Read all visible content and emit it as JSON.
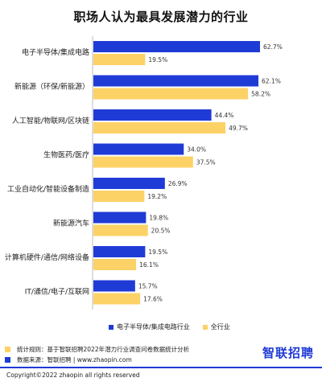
{
  "chart_data": {
    "type": "bar",
    "orientation": "horizontal",
    "title": "职场人认为最具发展潜力的行业",
    "categories": [
      "电子半导体/集成电路",
      "新能源（环保/新能源）",
      "人工智能/物联网/区块链",
      "生物医药/医疗",
      "工业自动化/智能设备制造",
      "新能源汽车",
      "计算机硬件/通信/网络设备",
      "IT/通信/电子/互联网"
    ],
    "series": [
      {
        "name": "电子半导体/集成电路行业",
        "color": "#1f3bd6",
        "values": [
          62.7,
          62.1,
          44.4,
          34.0,
          26.9,
          19.8,
          19.5,
          15.7
        ],
        "labels": [
          "62.7%",
          "62.1%",
          "44.4%",
          "34.0%",
          "26.9%",
          "19.8%",
          "19.5%",
          "15.7%"
        ]
      },
      {
        "name": "全行业",
        "color": "#fcd266",
        "values": [
          19.5,
          58.2,
          49.7,
          37.5,
          19.2,
          20.5,
          16.1,
          17.6
        ],
        "labels": [
          "19.5%",
          "58.2%",
          "49.7%",
          "37.5%",
          "19.2%",
          "20.5%",
          "16.1%",
          "17.6%"
        ]
      }
    ],
    "legend_position": "bottom-right",
    "grid": false
  },
  "footer": {
    "stats_rule": "统计规则：基于智联招聘2022年潜力行业调查问卷数据统计分析",
    "source": "数据来源：智联招聘 | www.zhaopin.com",
    "stats_color": "#fcd266",
    "source_color": "#1f3bd6"
  },
  "logo": "智联招聘",
  "copyright": "Copyright©2022 zhaopin all rights reserved"
}
